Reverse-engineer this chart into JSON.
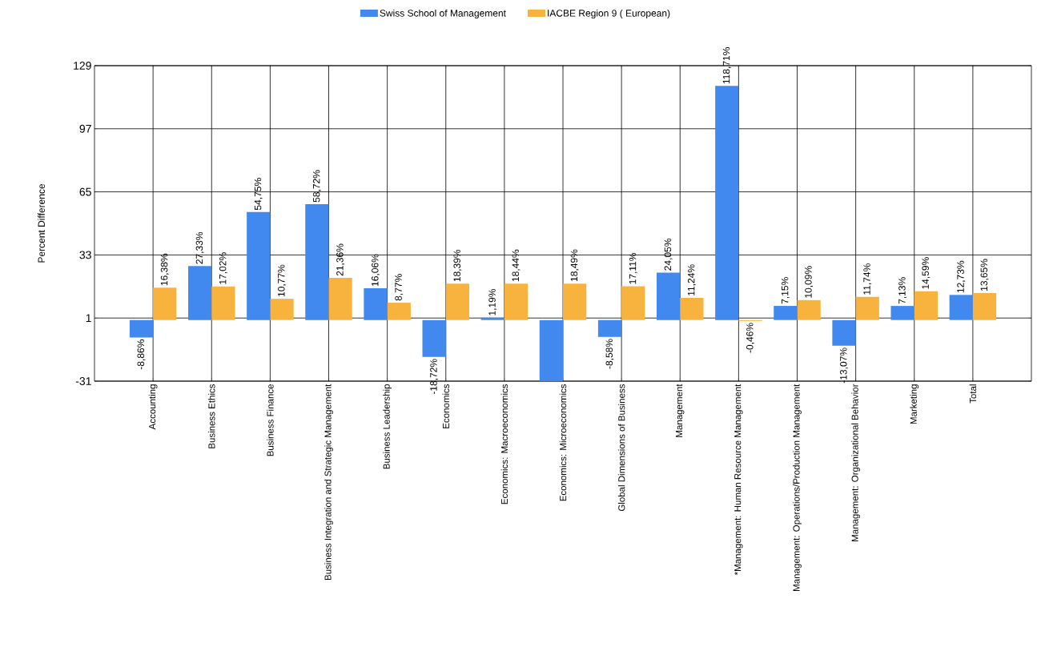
{
  "chart_data": {
    "type": "bar",
    "ylabel": "Percent Difference",
    "categories": [
      "Accounting",
      "Business Ethics",
      "Business Finance",
      "Business Integration and Strategic Management",
      "Business Leadership",
      "Economics",
      "Economics: Macroeconomics",
      "Economics: Microeconomics",
      "Global Dimensions of Business",
      "Management",
      "*Management: Human Resource Management",
      "Management: Operations/Production Management",
      "Management: Organizational Behavior",
      "Marketing",
      "Total"
    ],
    "series": [
      {
        "name": "Swiss School of Management",
        "color": "#4189ee",
        "values": [
          -8.86,
          27.33,
          54.75,
          58.72,
          16.06,
          -18.72,
          1.19,
          -31,
          -8.58,
          24.05,
          118.71,
          7.15,
          -13.07,
          7.13,
          12.73
        ],
        "value_labels": [
          "-8,86%",
          "27,33%",
          "54,75%",
          "58,72%",
          "16,06%",
          "-18,72%",
          "1,19%",
          null,
          "-8,58%",
          "24,05%",
          "118,71%",
          "7,15%",
          "-13,07%",
          "7,13%",
          "12,73%"
        ]
      },
      {
        "name": "IACBE  Region  9 ( European)",
        "color": "#f8b33f",
        "values": [
          16.38,
          17.02,
          10.77,
          21.36,
          8.77,
          18.39,
          18.44,
          18.49,
          17.11,
          11.24,
          -0.46,
          10.09,
          11.74,
          14.59,
          13.65
        ],
        "value_labels": [
          "16,38%",
          "17,02%",
          "10,77%",
          "21,36%",
          "8,77%",
          "18,39%",
          "18,44%",
          "18,49%",
          "17,11%",
          "11,24%",
          "-0,46%",
          "10,09%",
          "11,74%",
          "14,59%",
          "13,65%"
        ]
      }
    ],
    "ylim": [
      -31,
      129
    ],
    "yticks": [
      -31,
      1,
      33,
      65,
      97,
      129
    ],
    "grid": true,
    "legend": "top"
  }
}
